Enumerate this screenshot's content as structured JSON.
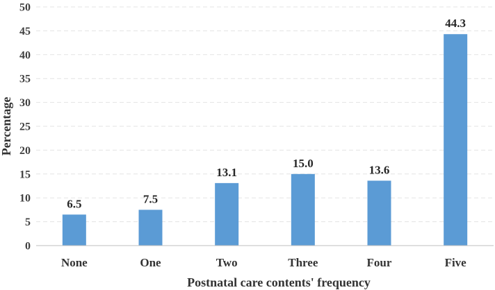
{
  "chart_data": {
    "type": "bar",
    "categories": [
      "None",
      "One",
      "Two",
      "Three",
      "Four",
      "Five"
    ],
    "values": [
      6.5,
      7.5,
      13.1,
      15.0,
      13.6,
      44.3
    ],
    "data_labels": [
      "6.5",
      "7.5",
      "13.1",
      "15.0",
      "13.6",
      "44.3"
    ],
    "title": "",
    "xlabel": "Postnatal care contents' frequency",
    "ylabel": "Percentage",
    "ylim": [
      0,
      50
    ],
    "yticks": [
      0,
      5,
      10,
      15,
      20,
      25,
      30,
      35,
      40,
      45,
      50
    ],
    "grid": true,
    "legend": "none",
    "bar_color": "#5b9bd5"
  }
}
